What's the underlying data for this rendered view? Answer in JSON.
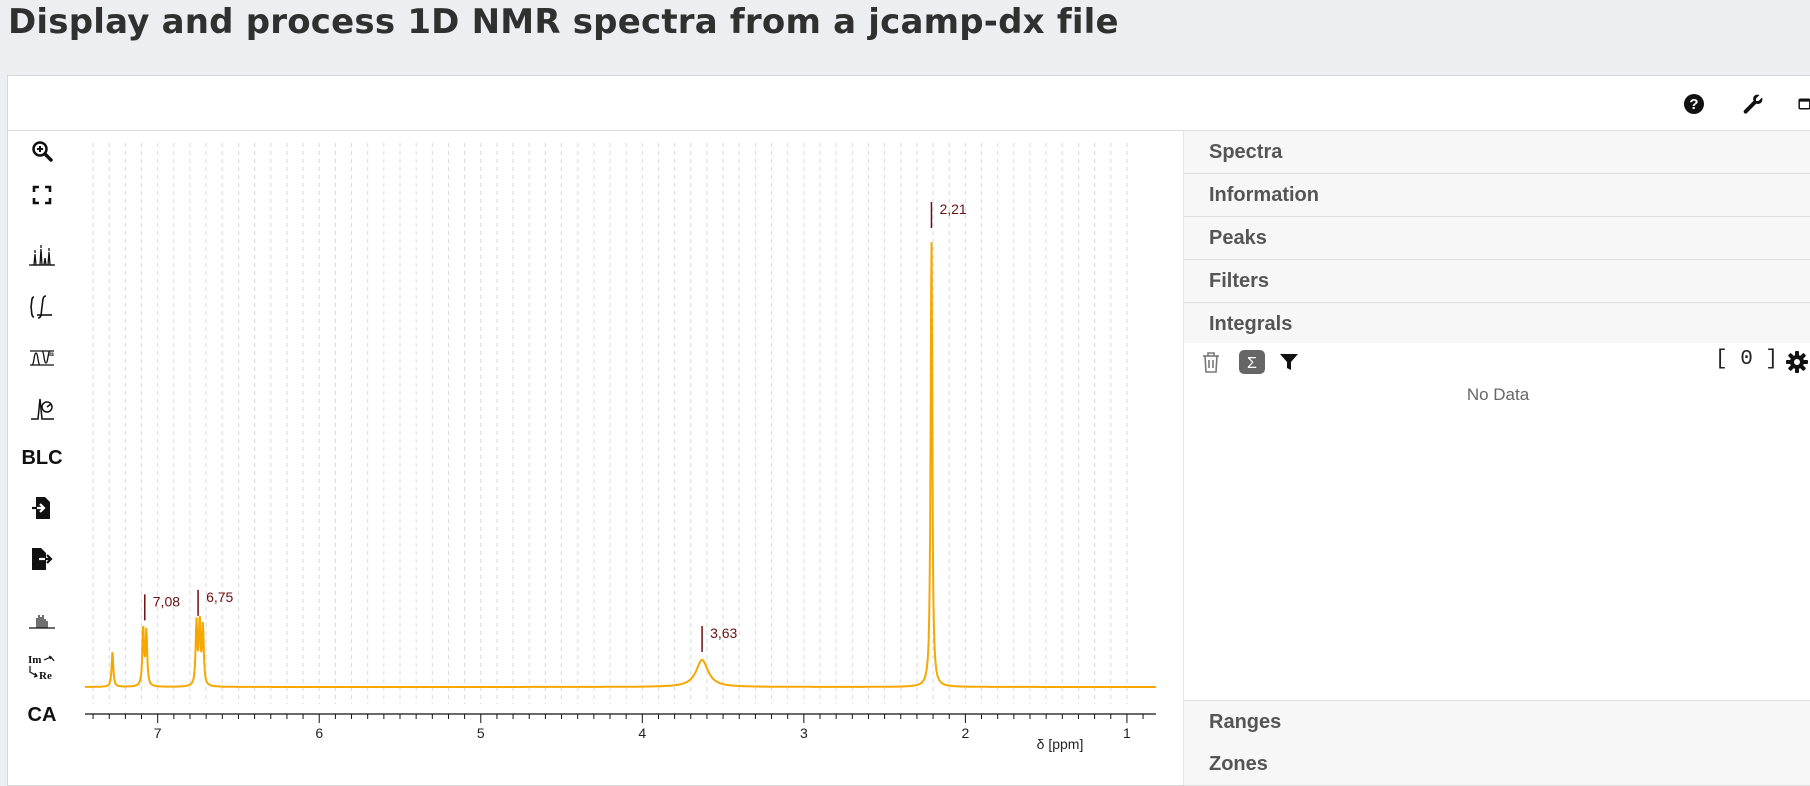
{
  "page": {
    "title": "Display and process 1D NMR spectra from a jcamp-dx file"
  },
  "toolbar": {
    "blc_label": "BLC",
    "ca_label": "CA"
  },
  "topbar": {
    "icons": [
      "help-icon",
      "wrench-icon",
      "panel-toggle-icon"
    ]
  },
  "panel": {
    "sections": [
      "Spectra",
      "Information",
      "Peaks",
      "Filters",
      "Integrals",
      "Ranges",
      "Zones"
    ],
    "integrals": {
      "count": "[ 0 ]",
      "empty_text": "No Data"
    }
  },
  "chart_data": {
    "type": "line",
    "xlabel": "δ [ppm]",
    "xlim": [
      7.45,
      0.82
    ],
    "x_axis_reversed": true,
    "xticks": [
      "7",
      "6",
      "5",
      "4",
      "3",
      "2",
      "1"
    ],
    "grid": "vertical dashed",
    "color": "#f7a800",
    "peak_label_color": "#6b0f0f",
    "peaks": [
      {
        "x": 7.28,
        "y": 0.08
      },
      {
        "x": 7.09,
        "y": 0.13
      },
      {
        "x": 7.07,
        "y": 0.12
      },
      {
        "x": 6.76,
        "y": 0.14
      },
      {
        "x": 6.74,
        "y": 0.14
      },
      {
        "x": 6.72,
        "y": 0.13
      },
      {
        "x": 3.63,
        "y": 0.06
      },
      {
        "x": 2.21,
        "y": 1.0
      }
    ],
    "peak_labels": [
      {
        "x": 7.08,
        "label": "7,08"
      },
      {
        "x": 6.75,
        "label": "6,75"
      },
      {
        "x": 3.63,
        "label": "3,63"
      },
      {
        "x": 2.21,
        "label": "2,21"
      }
    ]
  }
}
